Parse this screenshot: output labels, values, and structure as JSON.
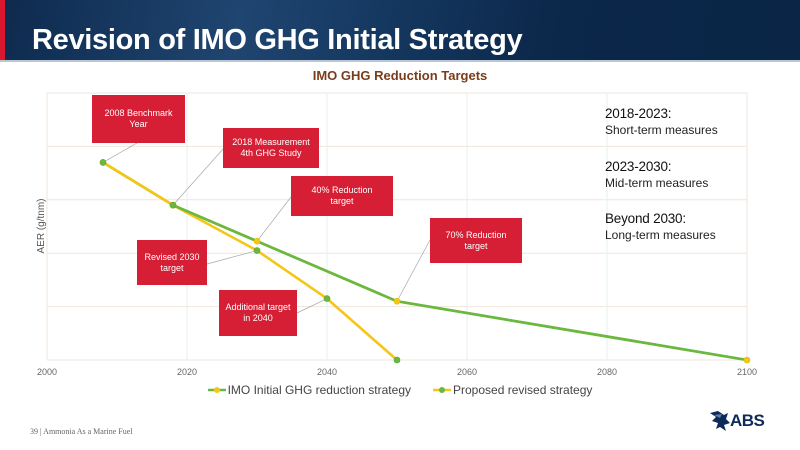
{
  "slide": {
    "title": "Revision of IMO GHG Initial Strategy",
    "footer_page": "39",
    "footer_separator": "|",
    "footer_text": "Ammonia As a Marine Fuel",
    "logo_text": "ABS"
  },
  "phases": [
    {
      "heading": "2018-2023:",
      "label": "Short-term measures"
    },
    {
      "heading": "2023-2030:",
      "label": "Mid-term measures"
    },
    {
      "heading": "Beyond 2030:",
      "label": "Long-term measures"
    }
  ],
  "colors": {
    "header_bg": "#0e2a4e",
    "accent_red": "#d9172f",
    "callout_bg": "#d61f35",
    "imo_initial_line": "#6bb83e",
    "imo_initial_marker": "#f5c518",
    "revised_line": "#f5c518",
    "revised_marker": "#6bb83e",
    "title_brown": "#7a3c1a"
  },
  "chart_data": {
    "type": "line",
    "title": "IMO GHG Reduction Targets",
    "xlabel": "",
    "ylabel": "AER (g/tnm)",
    "xlim": [
      2000,
      2100
    ],
    "ylim": [
      0,
      100
    ],
    "y_scale_note": "no y tick labels shown; values estimated on relative 0-100 scale",
    "x_ticks": [
      "2000",
      "2020",
      "2040",
      "2060",
      "2080",
      "2100"
    ],
    "grid": true,
    "legend_position": "bottom",
    "series": [
      {
        "name": "IMO Initial GHG reduction strategy",
        "points": [
          {
            "x": 2008,
            "y": 74
          },
          {
            "x": 2018,
            "y": 58
          },
          {
            "x": 2030,
            "y": 44.5
          },
          {
            "x": 2050,
            "y": 22
          },
          {
            "x": 2100,
            "y": 0
          }
        ]
      },
      {
        "name": "Proposed revised strategy",
        "points": [
          {
            "x": 2008,
            "y": 74
          },
          {
            "x": 2018,
            "y": 58
          },
          {
            "x": 2030,
            "y": 41
          },
          {
            "x": 2040,
            "y": 23
          },
          {
            "x": 2050,
            "y": 0
          }
        ]
      }
    ],
    "annotations": [
      {
        "text_line1": "2008 Benchmark",
        "text_line2": "Year",
        "series": 1,
        "x": 2008
      },
      {
        "text_line1": "2018 Measurement",
        "text_line2": "4th GHG Study",
        "series": 1,
        "x": 2018
      },
      {
        "text_line1": "40% Reduction",
        "text_line2": "target",
        "series": 0,
        "x": 2030
      },
      {
        "text_line1": "Revised 2030",
        "text_line2": "target",
        "series": 1,
        "x": 2030
      },
      {
        "text_line1": "Additional target",
        "text_line2": "in 2040",
        "series": 1,
        "x": 2040
      },
      {
        "text_line1": "70% Reduction",
        "text_line2": "target",
        "series": 0,
        "x": 2050
      }
    ]
  }
}
